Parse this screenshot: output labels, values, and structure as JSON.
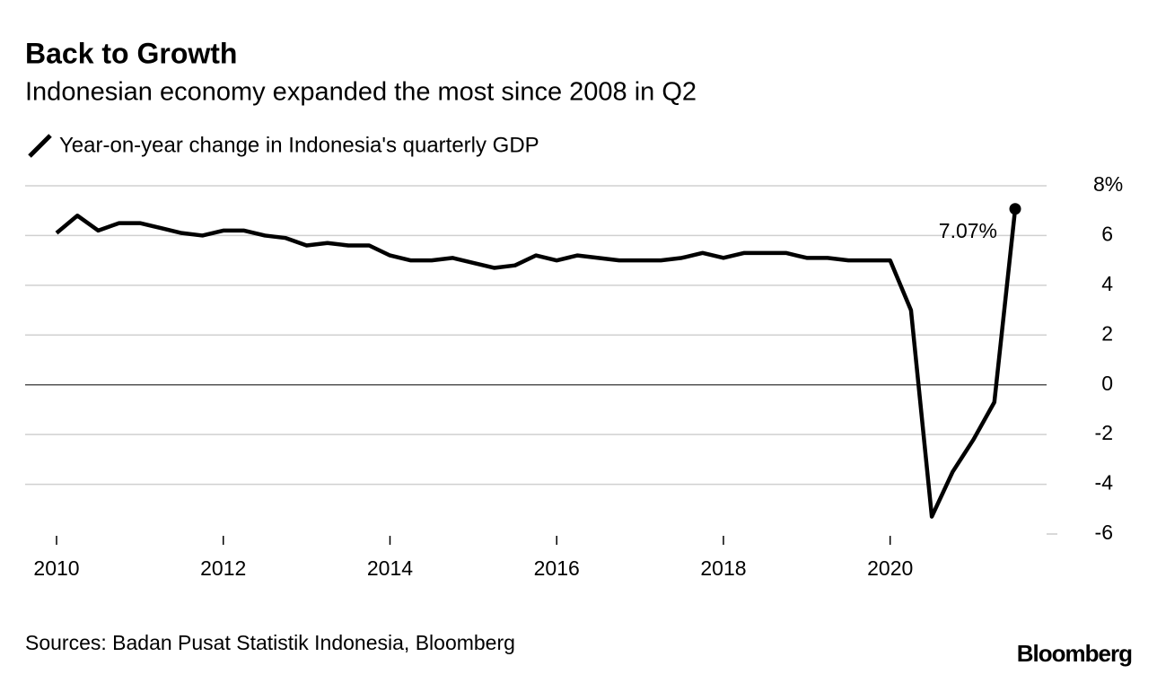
{
  "chart_data": {
    "type": "line",
    "title": "Back to Growth",
    "subtitle": "Indonesian economy expanded the most since 2008 in Q2",
    "source": "Sources: Badan Pusat Statistik Indonesia, Bloomberg",
    "brand": "Bloomberg",
    "x": [
      2010,
      2010.25,
      2010.5,
      2010.75,
      2011,
      2011.25,
      2011.5,
      2011.75,
      2012,
      2012.25,
      2012.5,
      2012.75,
      2013,
      2013.25,
      2013.5,
      2013.75,
      2014,
      2014.25,
      2014.5,
      2014.75,
      2015,
      2015.25,
      2015.5,
      2015.75,
      2016,
      2016.25,
      2016.5,
      2016.75,
      2017,
      2017.25,
      2017.5,
      2017.75,
      2018,
      2018.25,
      2018.5,
      2018.75,
      2019,
      2019.25,
      2019.5,
      2019.75,
      2020,
      2020.25,
      2020.5,
      2020.75,
      2021,
      2021.25,
      2021.5
    ],
    "series": [
      {
        "name": "Year-on-year change in Indonesia's quarterly GDP",
        "color": "#000000",
        "values": [
          6.1,
          6.8,
          6.2,
          6.5,
          6.5,
          6.3,
          6.1,
          6.0,
          6.2,
          6.2,
          6.0,
          5.9,
          5.6,
          5.7,
          5.6,
          5.6,
          5.2,
          5.0,
          5.0,
          5.1,
          4.9,
          4.7,
          4.8,
          5.2,
          5.0,
          5.2,
          5.1,
          5.0,
          5.0,
          5.0,
          5.1,
          5.3,
          5.1,
          5.3,
          5.3,
          5.3,
          5.1,
          5.1,
          5.0,
          5.0,
          5.0,
          3.0,
          -5.3,
          -3.5,
          -2.2,
          -0.7,
          7.07
        ],
        "value_labels": [
          null,
          null,
          null,
          null,
          null,
          null,
          null,
          null,
          null,
          null,
          null,
          null,
          null,
          null,
          null,
          null,
          null,
          null,
          null,
          null,
          null,
          null,
          null,
          null,
          null,
          null,
          null,
          null,
          null,
          null,
          null,
          null,
          null,
          null,
          null,
          null,
          null,
          null,
          null,
          null,
          null,
          null,
          null,
          null,
          null,
          null,
          "7.07%"
        ]
      }
    ],
    "xlim": [
      2010,
      2021.5
    ],
    "xticks": [
      2010,
      2012,
      2014,
      2016,
      2018,
      2020
    ],
    "ylim": [
      -6,
      8
    ],
    "yticks": [
      -6,
      -4,
      -2,
      0,
      2,
      4,
      6,
      {
        "value": 8,
        "label": "8%"
      }
    ],
    "grid": true
  }
}
